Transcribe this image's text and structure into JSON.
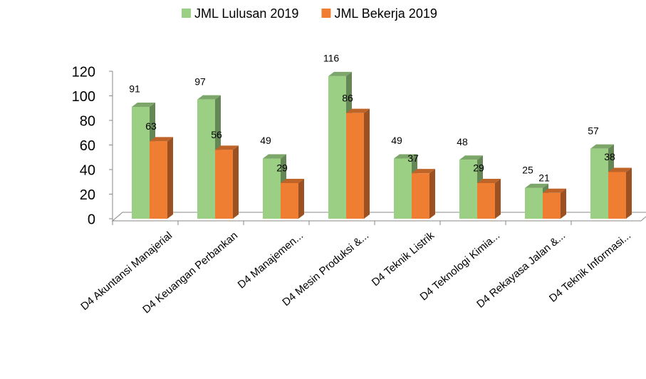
{
  "chart_data": {
    "type": "bar3d",
    "categories": [
      "D4 Akuntansi Manajerial",
      "D4 Keuangan Perbankan",
      "D4 Manajemen...",
      "D4 Mesin Produksi &...",
      "D4 Teknik Listrik",
      "D4 Teknologi Kimia...",
      "D4 Rekayasa Jalan &...",
      "D4 Teknik Informasi..."
    ],
    "series": [
      {
        "name": "JML Lulusan 2019",
        "color": "#9bcf84",
        "values": [
          91,
          97,
          49,
          116,
          49,
          48,
          25,
          57
        ]
      },
      {
        "name": "JML Bekerja 2019",
        "color": "#ef7d32",
        "values": [
          63,
          56,
          29,
          86,
          37,
          29,
          21,
          38
        ]
      }
    ],
    "ylim": [
      0,
      120
    ],
    "yticks": [
      0,
      20,
      40,
      60,
      80,
      100,
      120
    ],
    "legend": "top"
  }
}
